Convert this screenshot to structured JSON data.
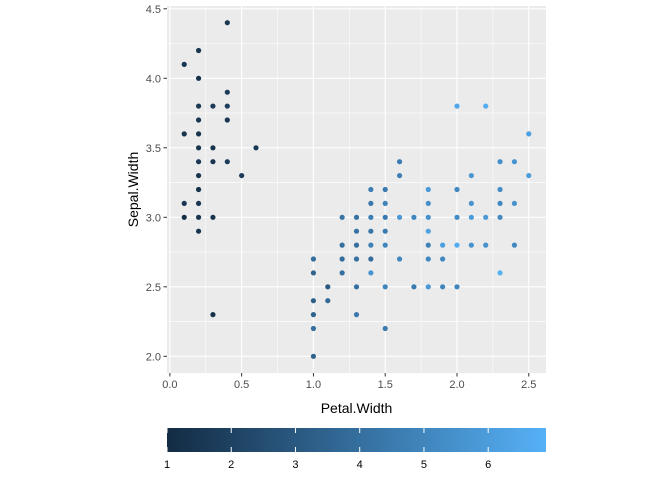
{
  "chart_data": {
    "type": "scatter",
    "xlabel": "Petal.Width",
    "ylabel": "Sepal.Width",
    "xlim": [
      -0.02,
      2.62
    ],
    "ylim": [
      1.88,
      4.52
    ],
    "x_ticks": [
      0.0,
      0.5,
      1.0,
      1.5,
      2.0,
      2.5
    ],
    "x_tick_labels": [
      "0.0",
      "0.5",
      "1.0",
      "1.5",
      "2.0",
      "2.5"
    ],
    "y_ticks": [
      2.0,
      2.5,
      3.0,
      3.5,
      4.0,
      4.5
    ],
    "y_tick_labels": [
      "2.0",
      "2.5",
      "3.0",
      "3.5",
      "4.0",
      "4.5"
    ],
    "grid": true,
    "color_scale": {
      "low": "#132B43",
      "high": "#56B1F7",
      "range": [
        1,
        6.9
      ],
      "ticks": [
        1,
        2,
        3,
        4,
        5,
        6
      ],
      "tick_labels": [
        "1",
        "2",
        "3",
        "4",
        "5",
        "6"
      ],
      "placement": "bottom"
    },
    "points": [
      {
        "x": 0.1,
        "y": 4.1,
        "c": 1.5
      },
      {
        "x": 0.2,
        "y": 4.2,
        "c": 1.4
      },
      {
        "x": 0.2,
        "y": 4.0,
        "c": 1.2
      },
      {
        "x": 0.4,
        "y": 4.4,
        "c": 1.5
      },
      {
        "x": 0.2,
        "y": 3.8,
        "c": 1.6
      },
      {
        "x": 0.3,
        "y": 3.8,
        "c": 1.7
      },
      {
        "x": 0.4,
        "y": 3.9,
        "c": 1.7
      },
      {
        "x": 0.4,
        "y": 3.8,
        "c": 1.9
      },
      {
        "x": 0.2,
        "y": 3.7,
        "c": 1.5
      },
      {
        "x": 0.4,
        "y": 3.7,
        "c": 1.5
      },
      {
        "x": 0.2,
        "y": 3.6,
        "c": 1.4
      },
      {
        "x": 0.1,
        "y": 3.6,
        "c": 1.4
      },
      {
        "x": 0.2,
        "y": 3.5,
        "c": 1.4
      },
      {
        "x": 0.3,
        "y": 3.5,
        "c": 1.3
      },
      {
        "x": 0.6,
        "y": 3.5,
        "c": 1.6
      },
      {
        "x": 0.2,
        "y": 3.4,
        "c": 1.5
      },
      {
        "x": 0.3,
        "y": 3.4,
        "c": 1.4
      },
      {
        "x": 0.4,
        "y": 3.4,
        "c": 1.7
      },
      {
        "x": 0.5,
        "y": 3.3,
        "c": 1.7
      },
      {
        "x": 0.2,
        "y": 3.3,
        "c": 1.4
      },
      {
        "x": 0.2,
        "y": 3.2,
        "c": 1.3
      },
      {
        "x": 0.2,
        "y": 3.1,
        "c": 1.5
      },
      {
        "x": 0.1,
        "y": 3.1,
        "c": 1.5
      },
      {
        "x": 0.2,
        "y": 3.0,
        "c": 1.4
      },
      {
        "x": 0.1,
        "y": 3.0,
        "c": 1.1
      },
      {
        "x": 0.3,
        "y": 3.0,
        "c": 1.4
      },
      {
        "x": 0.2,
        "y": 2.9,
        "c": 1.4
      },
      {
        "x": 0.3,
        "y": 2.3,
        "c": 1.3
      },
      {
        "x": 1.0,
        "y": 2.7,
        "c": 3.9
      },
      {
        "x": 1.0,
        "y": 2.6,
        "c": 3.5
      },
      {
        "x": 1.0,
        "y": 2.4,
        "c": 3.3
      },
      {
        "x": 1.0,
        "y": 2.3,
        "c": 3.5
      },
      {
        "x": 1.0,
        "y": 2.2,
        "c": 4.0
      },
      {
        "x": 1.0,
        "y": 2.0,
        "c": 3.5
      },
      {
        "x": 1.1,
        "y": 2.5,
        "c": 3.0
      },
      {
        "x": 1.1,
        "y": 2.4,
        "c": 3.7
      },
      {
        "x": 1.2,
        "y": 3.0,
        "c": 4.2
      },
      {
        "x": 1.2,
        "y": 2.8,
        "c": 4.0
      },
      {
        "x": 1.2,
        "y": 2.7,
        "c": 3.9
      },
      {
        "x": 1.2,
        "y": 2.6,
        "c": 4.0
      },
      {
        "x": 1.3,
        "y": 3.0,
        "c": 4.1
      },
      {
        "x": 1.3,
        "y": 2.9,
        "c": 4.2
      },
      {
        "x": 1.3,
        "y": 2.8,
        "c": 4.0
      },
      {
        "x": 1.3,
        "y": 2.7,
        "c": 4.1
      },
      {
        "x": 1.3,
        "y": 2.5,
        "c": 4.0
      },
      {
        "x": 1.3,
        "y": 2.3,
        "c": 4.4
      },
      {
        "x": 1.4,
        "y": 3.2,
        "c": 4.7
      },
      {
        "x": 1.4,
        "y": 3.1,
        "c": 4.4
      },
      {
        "x": 1.4,
        "y": 3.0,
        "c": 4.6
      },
      {
        "x": 1.4,
        "y": 2.9,
        "c": 4.3
      },
      {
        "x": 1.4,
        "y": 2.8,
        "c": 4.8
      },
      {
        "x": 1.4,
        "y": 2.7,
        "c": 3.9
      },
      {
        "x": 1.4,
        "y": 2.6,
        "c": 5.6
      },
      {
        "x": 1.5,
        "y": 3.2,
        "c": 4.5
      },
      {
        "x": 1.5,
        "y": 3.1,
        "c": 4.9
      },
      {
        "x": 1.5,
        "y": 3.0,
        "c": 4.5
      },
      {
        "x": 1.5,
        "y": 2.9,
        "c": 4.5
      },
      {
        "x": 1.5,
        "y": 2.8,
        "c": 5.1
      },
      {
        "x": 1.5,
        "y": 2.5,
        "c": 4.9
      },
      {
        "x": 1.5,
        "y": 2.2,
        "c": 4.5
      },
      {
        "x": 1.6,
        "y": 3.4,
        "c": 4.5
      },
      {
        "x": 1.6,
        "y": 3.3,
        "c": 4.7
      },
      {
        "x": 1.6,
        "y": 3.0,
        "c": 5.8
      },
      {
        "x": 1.6,
        "y": 2.7,
        "c": 5.1
      },
      {
        "x": 1.7,
        "y": 3.0,
        "c": 5.0
      },
      {
        "x": 1.7,
        "y": 2.5,
        "c": 4.5
      },
      {
        "x": 1.8,
        "y": 3.2,
        "c": 5.9
      },
      {
        "x": 1.8,
        "y": 3.1,
        "c": 5.5
      },
      {
        "x": 1.8,
        "y": 3.0,
        "c": 5.5
      },
      {
        "x": 1.8,
        "y": 2.9,
        "c": 6.3
      },
      {
        "x": 1.8,
        "y": 2.8,
        "c": 4.8
      },
      {
        "x": 1.8,
        "y": 2.7,
        "c": 5.1
      },
      {
        "x": 1.8,
        "y": 2.5,
        "c": 5.8
      },
      {
        "x": 1.9,
        "y": 2.8,
        "c": 6.1
      },
      {
        "x": 1.9,
        "y": 2.7,
        "c": 5.1
      },
      {
        "x": 1.9,
        "y": 2.5,
        "c": 5.0
      },
      {
        "x": 2.0,
        "y": 3.8,
        "c": 6.4
      },
      {
        "x": 2.0,
        "y": 3.2,
        "c": 5.1
      },
      {
        "x": 2.0,
        "y": 3.0,
        "c": 5.2
      },
      {
        "x": 2.0,
        "y": 2.8,
        "c": 6.7
      },
      {
        "x": 2.0,
        "y": 2.5,
        "c": 5.0
      },
      {
        "x": 2.1,
        "y": 3.3,
        "c": 5.7
      },
      {
        "x": 2.1,
        "y": 3.1,
        "c": 5.6
      },
      {
        "x": 2.1,
        "y": 3.0,
        "c": 5.9
      },
      {
        "x": 2.1,
        "y": 2.8,
        "c": 5.6
      },
      {
        "x": 2.2,
        "y": 3.8,
        "c": 6.7
      },
      {
        "x": 2.2,
        "y": 3.0,
        "c": 5.8
      },
      {
        "x": 2.2,
        "y": 2.8,
        "c": 5.6
      },
      {
        "x": 2.3,
        "y": 3.4,
        "c": 5.4
      },
      {
        "x": 2.3,
        "y": 3.2,
        "c": 5.3
      },
      {
        "x": 2.3,
        "y": 3.1,
        "c": 5.1
      },
      {
        "x": 2.3,
        "y": 3.0,
        "c": 5.2
      },
      {
        "x": 2.3,
        "y": 2.6,
        "c": 6.9
      },
      {
        "x": 2.4,
        "y": 3.4,
        "c": 5.6
      },
      {
        "x": 2.4,
        "y": 3.1,
        "c": 5.6
      },
      {
        "x": 2.4,
        "y": 2.8,
        "c": 5.1
      },
      {
        "x": 2.5,
        "y": 3.6,
        "c": 6.1
      },
      {
        "x": 2.5,
        "y": 3.3,
        "c": 6.0
      }
    ]
  }
}
